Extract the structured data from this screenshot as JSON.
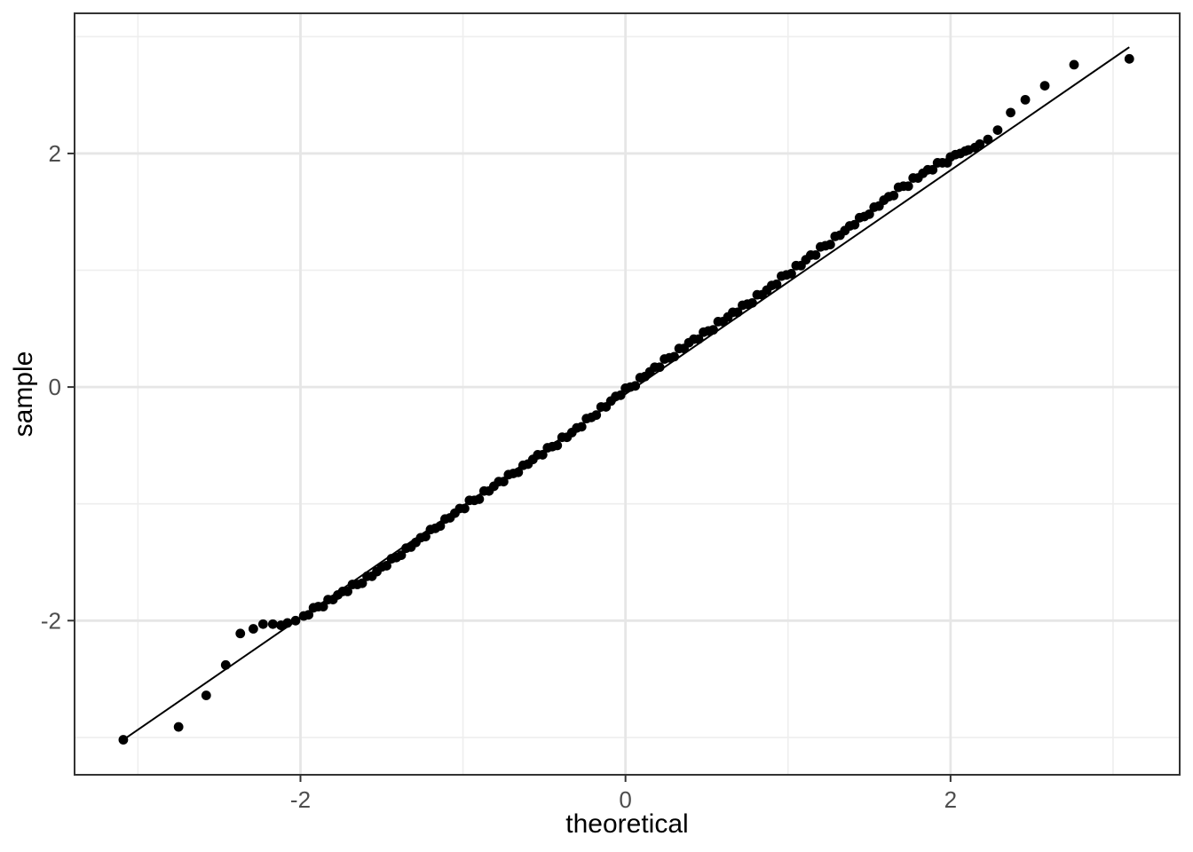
{
  "chart_data": {
    "type": "scatter",
    "subtype": "qq-plot",
    "title": "",
    "xlabel": "theoretical",
    "ylabel": "sample",
    "xlim": [
      -3.39,
      3.41
    ],
    "ylim": [
      -3.32,
      3.2
    ],
    "grid": true,
    "legend": "none",
    "x_major_ticks": [
      {
        "value": -2,
        "label": "-2"
      },
      {
        "value": 0,
        "label": "0"
      },
      {
        "value": 2,
        "label": "2"
      }
    ],
    "y_major_ticks": [
      {
        "value": -2,
        "label": "-2"
      },
      {
        "value": 0,
        "label": "0"
      },
      {
        "value": 2,
        "label": "2"
      }
    ],
    "x_minor_ticks": [
      -3,
      -1,
      1,
      3
    ],
    "y_minor_ticks": [
      -3,
      -1,
      1,
      3
    ],
    "qq_line": {
      "x1": -3.09,
      "y1": -3.02,
      "x2": 3.1,
      "y2": 2.91
    },
    "points": [
      [
        -3.09,
        -3.02
      ],
      [
        -2.75,
        -2.91
      ],
      [
        -2.58,
        -2.64
      ],
      [
        -2.46,
        -2.38
      ],
      [
        -2.37,
        -2.11
      ],
      [
        -2.29,
        -2.07
      ],
      [
        -2.23,
        -2.03
      ],
      [
        -2.17,
        -2.03
      ],
      [
        -2.12,
        -2.04
      ],
      [
        -2.08,
        -2.02
      ],
      [
        -2.03,
        -2.0
      ],
      [
        -1.98,
        -1.96
      ],
      [
        -1.95,
        -1.95
      ],
      [
        -1.92,
        -1.89
      ],
      [
        -1.89,
        -1.88
      ],
      [
        -1.86,
        -1.88
      ],
      [
        -1.83,
        -1.82
      ],
      [
        -1.8,
        -1.82
      ],
      [
        -1.77,
        -1.78
      ],
      [
        -1.74,
        -1.75
      ],
      [
        -1.71,
        -1.75
      ],
      [
        -1.68,
        -1.69
      ],
      [
        -1.65,
        -1.69
      ],
      [
        -1.62,
        -1.68
      ],
      [
        -1.59,
        -1.62
      ],
      [
        -1.56,
        -1.62
      ],
      [
        -1.53,
        -1.58
      ],
      [
        -1.5,
        -1.54
      ],
      [
        -1.47,
        -1.53
      ],
      [
        -1.44,
        -1.47
      ],
      [
        -1.41,
        -1.46
      ],
      [
        -1.38,
        -1.44
      ],
      [
        -1.35,
        -1.38
      ],
      [
        -1.32,
        -1.37
      ],
      [
        -1.29,
        -1.33
      ],
      [
        -1.26,
        -1.29
      ],
      [
        -1.23,
        -1.28
      ],
      [
        -1.2,
        -1.22
      ],
      [
        -1.17,
        -1.21
      ],
      [
        -1.14,
        -1.19
      ],
      [
        -1.11,
        -1.13
      ],
      [
        -1.08,
        -1.12
      ],
      [
        -1.05,
        -1.08
      ],
      [
        -1.02,
        -1.04
      ],
      [
        -0.99,
        -1.04
      ],
      [
        -0.96,
        -0.97
      ],
      [
        -0.93,
        -0.97
      ],
      [
        -0.9,
        -0.96
      ],
      [
        -0.87,
        -0.89
      ],
      [
        -0.84,
        -0.89
      ],
      [
        -0.81,
        -0.85
      ],
      [
        -0.78,
        -0.81
      ],
      [
        -0.75,
        -0.81
      ],
      [
        -0.72,
        -0.75
      ],
      [
        -0.69,
        -0.74
      ],
      [
        -0.66,
        -0.73
      ],
      [
        -0.63,
        -0.67
      ],
      [
        -0.6,
        -0.66
      ],
      [
        -0.57,
        -0.62
      ],
      [
        -0.54,
        -0.58
      ],
      [
        -0.51,
        -0.58
      ],
      [
        -0.48,
        -0.52
      ],
      [
        -0.45,
        -0.51
      ],
      [
        -0.42,
        -0.5
      ],
      [
        -0.39,
        -0.43
      ],
      [
        -0.36,
        -0.43
      ],
      [
        -0.33,
        -0.39
      ],
      [
        -0.3,
        -0.35
      ],
      [
        -0.27,
        -0.34
      ],
      [
        -0.24,
        -0.27
      ],
      [
        -0.21,
        -0.26
      ],
      [
        -0.18,
        -0.24
      ],
      [
        -0.15,
        -0.17
      ],
      [
        -0.12,
        -0.17
      ],
      [
        -0.09,
        -0.12
      ],
      [
        -0.06,
        -0.08
      ],
      [
        -0.03,
        -0.07
      ],
      [
        0.0,
        -0.01
      ],
      [
        0.03,
        0.0
      ],
      [
        0.06,
        0.01
      ],
      [
        0.09,
        0.08
      ],
      [
        0.12,
        0.09
      ],
      [
        0.15,
        0.13
      ],
      [
        0.18,
        0.17
      ],
      [
        0.21,
        0.17
      ],
      [
        0.24,
        0.24
      ],
      [
        0.27,
        0.25
      ],
      [
        0.3,
        0.26
      ],
      [
        0.33,
        0.33
      ],
      [
        0.36,
        0.33
      ],
      [
        0.39,
        0.38
      ],
      [
        0.42,
        0.41
      ],
      [
        0.45,
        0.41
      ],
      [
        0.48,
        0.47
      ],
      [
        0.51,
        0.48
      ],
      [
        0.54,
        0.49
      ],
      [
        0.57,
        0.56
      ],
      [
        0.6,
        0.56
      ],
      [
        0.63,
        0.6
      ],
      [
        0.66,
        0.64
      ],
      [
        0.69,
        0.64
      ],
      [
        0.72,
        0.7
      ],
      [
        0.75,
        0.71
      ],
      [
        0.78,
        0.72
      ],
      [
        0.81,
        0.79
      ],
      [
        0.84,
        0.79
      ],
      [
        0.87,
        0.83
      ],
      [
        0.9,
        0.87
      ],
      [
        0.93,
        0.88
      ],
      [
        0.96,
        0.95
      ],
      [
        0.99,
        0.96
      ],
      [
        1.02,
        0.97
      ],
      [
        1.05,
        1.04
      ],
      [
        1.08,
        1.04
      ],
      [
        1.11,
        1.09
      ],
      [
        1.14,
        1.13
      ],
      [
        1.17,
        1.13
      ],
      [
        1.2,
        1.2
      ],
      [
        1.23,
        1.21
      ],
      [
        1.26,
        1.22
      ],
      [
        1.29,
        1.29
      ],
      [
        1.32,
        1.3
      ],
      [
        1.35,
        1.34
      ],
      [
        1.38,
        1.38
      ],
      [
        1.41,
        1.39
      ],
      [
        1.44,
        1.45
      ],
      [
        1.47,
        1.46
      ],
      [
        1.5,
        1.48
      ],
      [
        1.53,
        1.54
      ],
      [
        1.56,
        1.55
      ],
      [
        1.59,
        1.6
      ],
      [
        1.62,
        1.63
      ],
      [
        1.65,
        1.64
      ],
      [
        1.68,
        1.71
      ],
      [
        1.71,
        1.72
      ],
      [
        1.74,
        1.72
      ],
      [
        1.77,
        1.79
      ],
      [
        1.8,
        1.79
      ],
      [
        1.83,
        1.83
      ],
      [
        1.86,
        1.86
      ],
      [
        1.89,
        1.86
      ],
      [
        1.92,
        1.92
      ],
      [
        1.95,
        1.92
      ],
      [
        1.98,
        1.92
      ],
      [
        2.0,
        1.97
      ],
      [
        2.03,
        1.99
      ],
      [
        2.06,
        2.0
      ],
      [
        2.09,
        2.02
      ],
      [
        2.11,
        2.03
      ],
      [
        2.15,
        2.05
      ],
      [
        2.18,
        2.08
      ],
      [
        2.23,
        2.12
      ],
      [
        2.29,
        2.2
      ],
      [
        2.37,
        2.35
      ],
      [
        2.46,
        2.46
      ],
      [
        2.58,
        2.58
      ],
      [
        2.76,
        2.76
      ],
      [
        3.1,
        2.81
      ]
    ]
  },
  "style": {
    "background": "#ffffff",
    "panel_border_color": "#333333",
    "grid_major_color": "#e6e6e6",
    "grid_minor_color": "#eeeeee",
    "tick_color": "#333333",
    "tick_label_color": "#4d4d4d",
    "axis_title_color": "#000000",
    "point_color": "#000000",
    "qq_line_color": "#000000"
  }
}
